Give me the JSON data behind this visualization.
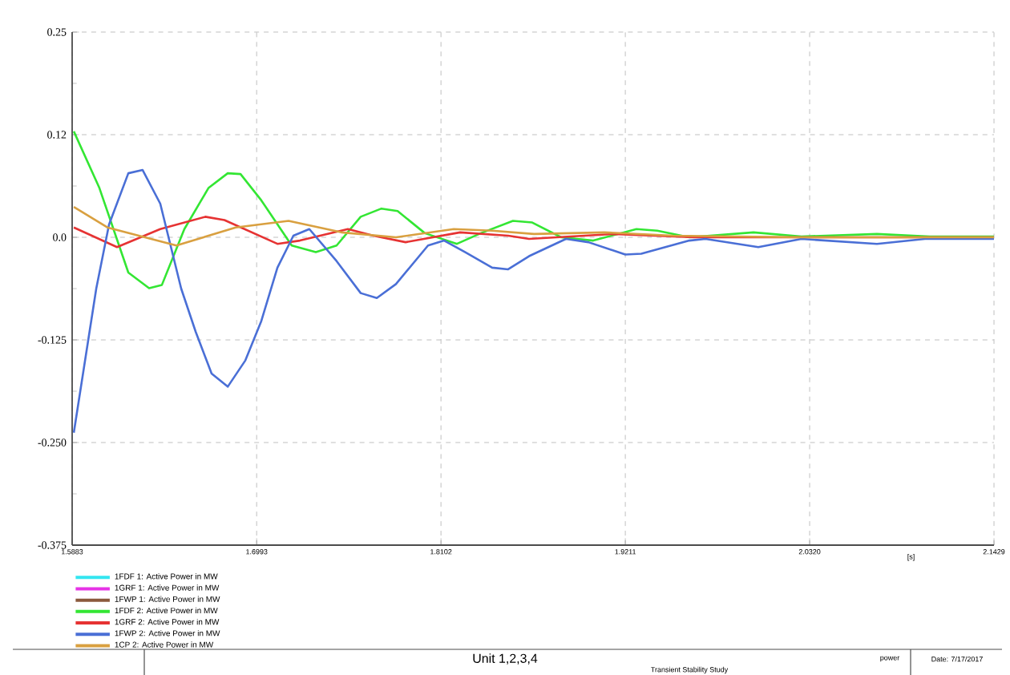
{
  "chart_data": {
    "type": "line",
    "xlabel": "[s]",
    "xlim": [
      1.5883,
      2.1429
    ],
    "xticks": [
      1.5883,
      1.6993,
      1.8102,
      1.9211,
      {
        "value": 2.032,
        "label": "2.0320"
      },
      2.1429
    ],
    "ylim": [
      -0.375,
      0.25
    ],
    "yticks": [
      {
        "value": -0.375,
        "label": "-0.375"
      },
      {
        "value": -0.25,
        "label": "-0.250"
      },
      {
        "value": -0.125,
        "label": "-0.125"
      },
      {
        "value": 0,
        "label": "0.0"
      },
      {
        "value": 0.125,
        "label": "0.12"
      },
      0.25
    ],
    "grid": true,
    "legend": "bottom left",
    "line_style": "solid",
    "marker": "none",
    "series": [
      {
        "name": "1FDF 1: Active Power in MW",
        "color": "#33e6f0"
      },
      {
        "name": "1GRF 1: Active Power in MW",
        "color": "#e633e6"
      },
      {
        "name": "1FWP 1: Active Power in MW",
        "color": "#8b5a3c"
      },
      {
        "name": "1FDF 2: Active Power in MW",
        "color": "#33e633",
        "x": [
          1.5893,
          1.6047,
          1.6221,
          1.6346,
          1.6423,
          1.6558,
          1.6703,
          1.6819,
          1.6896,
          1.7021,
          1.7204,
          1.7349,
          1.7474,
          1.7619,
          1.7744,
          1.7841,
          1.8005,
          1.8198,
          1.8342,
          1.8535,
          1.8651,
          1.8825,
          1.9018,
          1.9278,
          1.9403,
          1.9596,
          1.9982,
          2.0271,
          2.0725,
          2.1043,
          2.1429
        ],
        "values": [
          0.129,
          0.06,
          -0.043,
          -0.062,
          -0.058,
          0.01,
          0.06,
          0.078,
          0.077,
          0.045,
          -0.01,
          -0.018,
          -0.01,
          0.025,
          0.035,
          0.032,
          0.005,
          -0.008,
          0.005,
          0.02,
          0.018,
          0.0,
          -0.004,
          0.01,
          0.008,
          0.0,
          0.006,
          0.001,
          0.004,
          0.001,
          0.001
        ]
      },
      {
        "name": "1GRF 2: Active Power in MW",
        "color": "#e63333",
        "x": [
          1.5893,
          1.6153,
          1.6413,
          1.6684,
          1.6799,
          1.7118,
          1.7253,
          1.7542,
          1.7696,
          1.7889,
          1.8217,
          1.8506,
          1.8632,
          1.9143,
          1.9625,
          2.1429
        ],
        "values": [
          0.012,
          -0.012,
          0.01,
          0.025,
          0.021,
          -0.008,
          -0.004,
          0.01,
          0.002,
          -0.006,
          0.006,
          0.002,
          -0.002,
          0.004,
          0.0,
          0.0
        ]
      },
      {
        "name": "1FWP 2: Active Power in MW",
        "color": "#4a6fd6",
        "x": [
          1.5893,
          1.6028,
          1.6105,
          1.6221,
          1.6307,
          1.6413,
          1.6539,
          1.6626,
          1.6722,
          1.6819,
          1.6925,
          1.7021,
          1.7118,
          1.7214,
          1.731,
          1.7474,
          1.7619,
          1.7716,
          1.7831,
          1.8024,
          1.8121,
          1.8246,
          1.841,
          1.8506,
          1.8632,
          1.8854,
          1.8989,
          1.9211,
          1.9307,
          1.9596,
          1.9693,
          2.0011,
          2.0271,
          2.0725,
          2.1014,
          2.1429
        ],
        "values": [
          -0.238,
          -0.0625,
          0.0156,
          0.078,
          0.082,
          0.041,
          -0.0625,
          -0.115,
          -0.166,
          -0.182,
          -0.15,
          -0.102,
          -0.037,
          0.002,
          0.01,
          -0.029,
          -0.068,
          -0.074,
          -0.057,
          -0.01,
          -0.004,
          -0.018,
          -0.037,
          -0.039,
          -0.023,
          -0.002,
          -0.006,
          -0.021,
          -0.02,
          -0.004,
          -0.002,
          -0.012,
          -0.002,
          -0.008,
          -0.002,
          -0.002
        ]
      },
      {
        "name": "1CP 2: Active Power in MW",
        "color": "#d9a040",
        "x": [
          1.5893,
          1.6095,
          1.651,
          1.6867,
          1.7185,
          1.7503,
          1.7831,
          1.8179,
          1.841,
          1.8661,
          1.9085,
          1.95,
          2.0271,
          2.1429
        ],
        "values": [
          0.037,
          0.012,
          -0.01,
          0.012,
          0.02,
          0.006,
          0.0,
          0.01,
          0.008,
          0.004,
          0.006,
          0.002,
          0.0,
          0.0
        ]
      }
    ],
    "annotations": [
      "Unit 1,2,3,4",
      "Transient Stability Study",
      "power",
      "Date: 7/17/2017"
    ]
  }
}
